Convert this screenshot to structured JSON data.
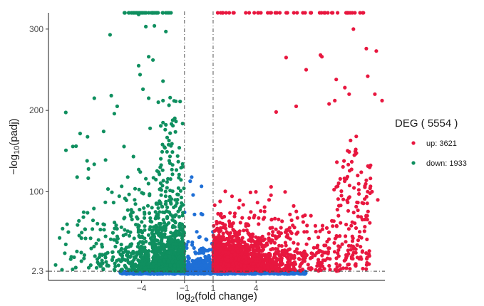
{
  "chart_data": {
    "type": "scatter",
    "title": "",
    "xlabel": "log2(fold change)",
    "xlabel_parts": {
      "pre": "log",
      "sub": "2",
      "post": "(fold change)"
    },
    "ylabel": "-log10(padj)",
    "ylabel_parts": {
      "pre": "−log",
      "sub": "10",
      "post": "(padj)"
    },
    "xlim": [
      -10.5,
      13
    ],
    "ylim": [
      -9,
      320
    ],
    "x_ticks": [
      -4,
      -1,
      1,
      4
    ],
    "x_tick_labels": [
      "−4",
      "−1",
      "1",
      "4"
    ],
    "y_ticks": [
      2.3,
      100,
      200,
      300
    ],
    "y_tick_labels": [
      "2.3",
      "100",
      "200",
      "300"
    ],
    "grid": false,
    "thresholds": {
      "log2fc": [
        -1,
        1
      ],
      "neg_log10_padj": 2.3
    },
    "legend": {
      "title": "DEG ( 5554 )",
      "position": "right",
      "entries": [
        {
          "key": "up",
          "label": "up: 3621",
          "color": "#e8173f",
          "count": 3621
        },
        {
          "key": "down",
          "label": "down: 1933",
          "color": "#0f8f5f",
          "count": 1933
        }
      ]
    },
    "series": [
      {
        "key": "up",
        "color": "#e8173f",
        "count": 3621
      },
      {
        "key": "down",
        "color": "#0f8f5f",
        "count": 1933
      },
      {
        "key": "nonsig",
        "color": "#1f6fd6"
      }
    ],
    "notable_points": {
      "up": [
        [
          6.1,
          265
        ],
        [
          8.5,
          268
        ],
        [
          8.6,
          266
        ],
        [
          7.5,
          250
        ],
        [
          9.6,
          238
        ],
        [
          10.2,
          228
        ],
        [
          10.5,
          220
        ],
        [
          9.1,
          208
        ],
        [
          9.5,
          212
        ],
        [
          10.8,
          300
        ],
        [
          11.7,
          276
        ],
        [
          12.4,
          273
        ],
        [
          12.3,
          220
        ],
        [
          12.8,
          212
        ],
        [
          11.8,
          242
        ],
        [
          6.8,
          205
        ],
        [
          5.4,
          198
        ],
        [
          11.0,
          168
        ],
        [
          10.6,
          163
        ],
        [
          11.1,
          120
        ],
        [
          11.7,
          114
        ],
        [
          12.1,
          100
        ],
        [
          12.5,
          90
        ]
      ],
      "down": [
        [
          -5.2,
          322
        ],
        [
          -4.2,
          318
        ],
        [
          -3.5,
          322
        ],
        [
          -2.5,
          320
        ],
        [
          -3.7,
          303
        ],
        [
          -3.1,
          304
        ],
        [
          -2.3,
          297
        ],
        [
          -6.2,
          293
        ],
        [
          -3.5,
          266
        ],
        [
          -3.2,
          262
        ],
        [
          -4.2,
          255
        ],
        [
          -4.1,
          244
        ],
        [
          -2.5,
          236
        ],
        [
          -3.9,
          226
        ],
        [
          -3.5,
          215
        ],
        [
          -2.5,
          212
        ],
        [
          -7.3,
          215
        ],
        [
          -5.7,
          205
        ],
        [
          -5.9,
          196
        ],
        [
          -3.4,
          178
        ],
        [
          -2.5,
          185
        ],
        [
          -2.0,
          172
        ],
        [
          -7.7,
          128
        ],
        [
          -8.5,
          118
        ],
        [
          -7.8,
          138
        ],
        [
          -9.2,
          60
        ],
        [
          -10,
          10
        ],
        [
          -8.9,
          20
        ],
        [
          -8.2,
          43
        ]
      ]
    }
  }
}
